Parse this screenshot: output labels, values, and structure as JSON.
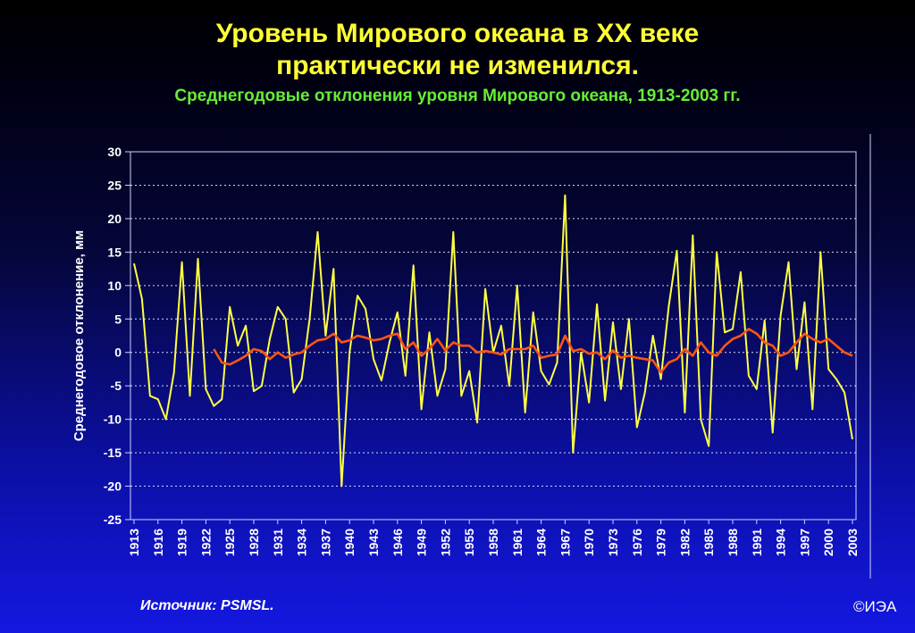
{
  "header": {
    "title_line1": "Уровень Мирового океана в XX веке",
    "title_line2": "практически не изменился.",
    "subtitle": "Среднегодовые отклонения уровня Мирового океана, 1913-2003 гг."
  },
  "footer": {
    "source": "Источник: PSMSL.",
    "copyright": "©ИЭА"
  },
  "colors": {
    "annual_line": "#ffff44",
    "smoothed_line": "#ff5511",
    "grid": "#ffffff",
    "title": "#ffff33",
    "subtitle": "#66ee33"
  },
  "chart_data": {
    "type": "line",
    "ylabel": "Среднегодовое отклонение, мм",
    "xlabel": "",
    "ylim": [
      -25,
      30
    ],
    "yticks": [
      30,
      25,
      20,
      15,
      10,
      5,
      0,
      -5,
      -10,
      -15,
      -20,
      -25
    ],
    "xlim": [
      1913,
      2003
    ],
    "xticks": [
      1913,
      1916,
      1919,
      1922,
      1925,
      1928,
      1931,
      1934,
      1937,
      1940,
      1943,
      1946,
      1949,
      1952,
      1955,
      1958,
      1961,
      1964,
      1967,
      1970,
      1973,
      1976,
      1979,
      1982,
      1985,
      1988,
      1991,
      1994,
      1997,
      2000,
      2003
    ],
    "grid": "horizontal dotted",
    "series": [
      {
        "x": [
          1913,
          1914,
          1915,
          1916,
          1917,
          1918,
          1919,
          1920,
          1921,
          1922,
          1923,
          1924,
          1925,
          1926,
          1927,
          1928,
          1929,
          1930,
          1931,
          1932,
          1933,
          1934,
          1935,
          1936,
          1937,
          1938,
          1939,
          1940,
          1941,
          1942,
          1943,
          1944,
          1945,
          1946,
          1947,
          1948,
          1949,
          1950,
          1951,
          1952,
          1953,
          1954,
          1955,
          1956,
          1957,
          1958,
          1959,
          1960,
          1961,
          1962,
          1963,
          1964,
          1965,
          1966,
          1967,
          1968,
          1969,
          1970,
          1971,
          1972,
          1973,
          1974,
          1975,
          1976,
          1977,
          1978,
          1979,
          1980,
          1981,
          1982,
          1983,
          1984,
          1985,
          1986,
          1987,
          1988,
          1989,
          1990,
          1991,
          1992,
          1993,
          1994,
          1995,
          1996,
          1997,
          1998,
          1999,
          2000,
          2001,
          2002,
          2003
        ],
        "values": [
          13.3,
          8,
          -6.5,
          -7,
          -10,
          -3,
          13.5,
          -6.5,
          14,
          -5.5,
          -8,
          -7,
          6.8,
          1,
          4,
          -5.8,
          -5,
          2,
          6.8,
          5,
          -6,
          -4,
          5,
          18,
          2.5,
          12.5,
          -20,
          0,
          8.5,
          6.5,
          -1,
          -4.2,
          1.5,
          6,
          -3.5,
          13,
          -8.5,
          3,
          -6.5,
          -2.5,
          18,
          -6.5,
          -2.8,
          -10.5,
          9.5,
          0,
          4,
          -5,
          10,
          -9,
          6,
          -2.8,
          -4.8,
          -1.5,
          23.5,
          -15,
          0,
          -7.5,
          7.2,
          -7.2,
          4.5,
          -5.5,
          5,
          -11.2,
          -6,
          2.5,
          -4,
          7,
          15.2,
          -9,
          17.5,
          -10,
          -14,
          15,
          3,
          3.5,
          12,
          -3.5,
          -5.5,
          4.8,
          -12,
          5.5,
          13.5,
          -2.5,
          7.5,
          -8.5,
          15,
          -2.5,
          -4,
          -6,
          -13
        ]
      },
      {
        "x": [
          1923,
          1924,
          1925,
          1926,
          1927,
          1928,
          1929,
          1930,
          1931,
          1932,
          1933,
          1934,
          1935,
          1936,
          1937,
          1938,
          1939,
          1940,
          1941,
          1942,
          1943,
          1944,
          1945,
          1946,
          1947,
          1948,
          1949,
          1950,
          1951,
          1952,
          1953,
          1954,
          1955,
          1956,
          1957,
          1958,
          1959,
          1960,
          1961,
          1962,
          1963,
          1964,
          1965,
          1966,
          1967,
          1968,
          1969,
          1970,
          1971,
          1972,
          1973,
          1974,
          1975,
          1976,
          1977,
          1978,
          1979,
          1980,
          1981,
          1982,
          1983,
          1984,
          1985,
          1986,
          1987,
          1988,
          1989,
          1990,
          1991,
          1992,
          1993,
          1994,
          1995,
          1996,
          1997,
          1998,
          1999,
          2000,
          2001,
          2002,
          2003
        ],
        "values": [
          0.5,
          -1.5,
          -1.8,
          -1.2,
          -0.5,
          0.5,
          0.2,
          -1,
          0,
          -0.8,
          -0.3,
          0,
          1,
          1.8,
          2,
          2.8,
          1.5,
          1.8,
          2.5,
          2.2,
          1.8,
          2,
          2.5,
          2.8,
          0.5,
          1.5,
          -0.5,
          0.5,
          2,
          0.3,
          1.5,
          1,
          1,
          0,
          0.2,
          0,
          -0.3,
          0.5,
          0.5,
          0.5,
          1,
          -0.8,
          -0.5,
          -0.3,
          2.5,
          0.2,
          0.5,
          -0.2,
          0,
          -1,
          0.3,
          -0.8,
          -0.5,
          -0.8,
          -1,
          -1.2,
          -3,
          -1.5,
          -1,
          0.5,
          -0.5,
          1.5,
          0,
          -0.5,
          1,
          2,
          2.5,
          3.5,
          2.8,
          1.5,
          1,
          -0.5,
          0,
          1.5,
          2.8,
          2,
          1.5,
          2,
          1,
          0,
          -0.5
        ]
      }
    ]
  }
}
